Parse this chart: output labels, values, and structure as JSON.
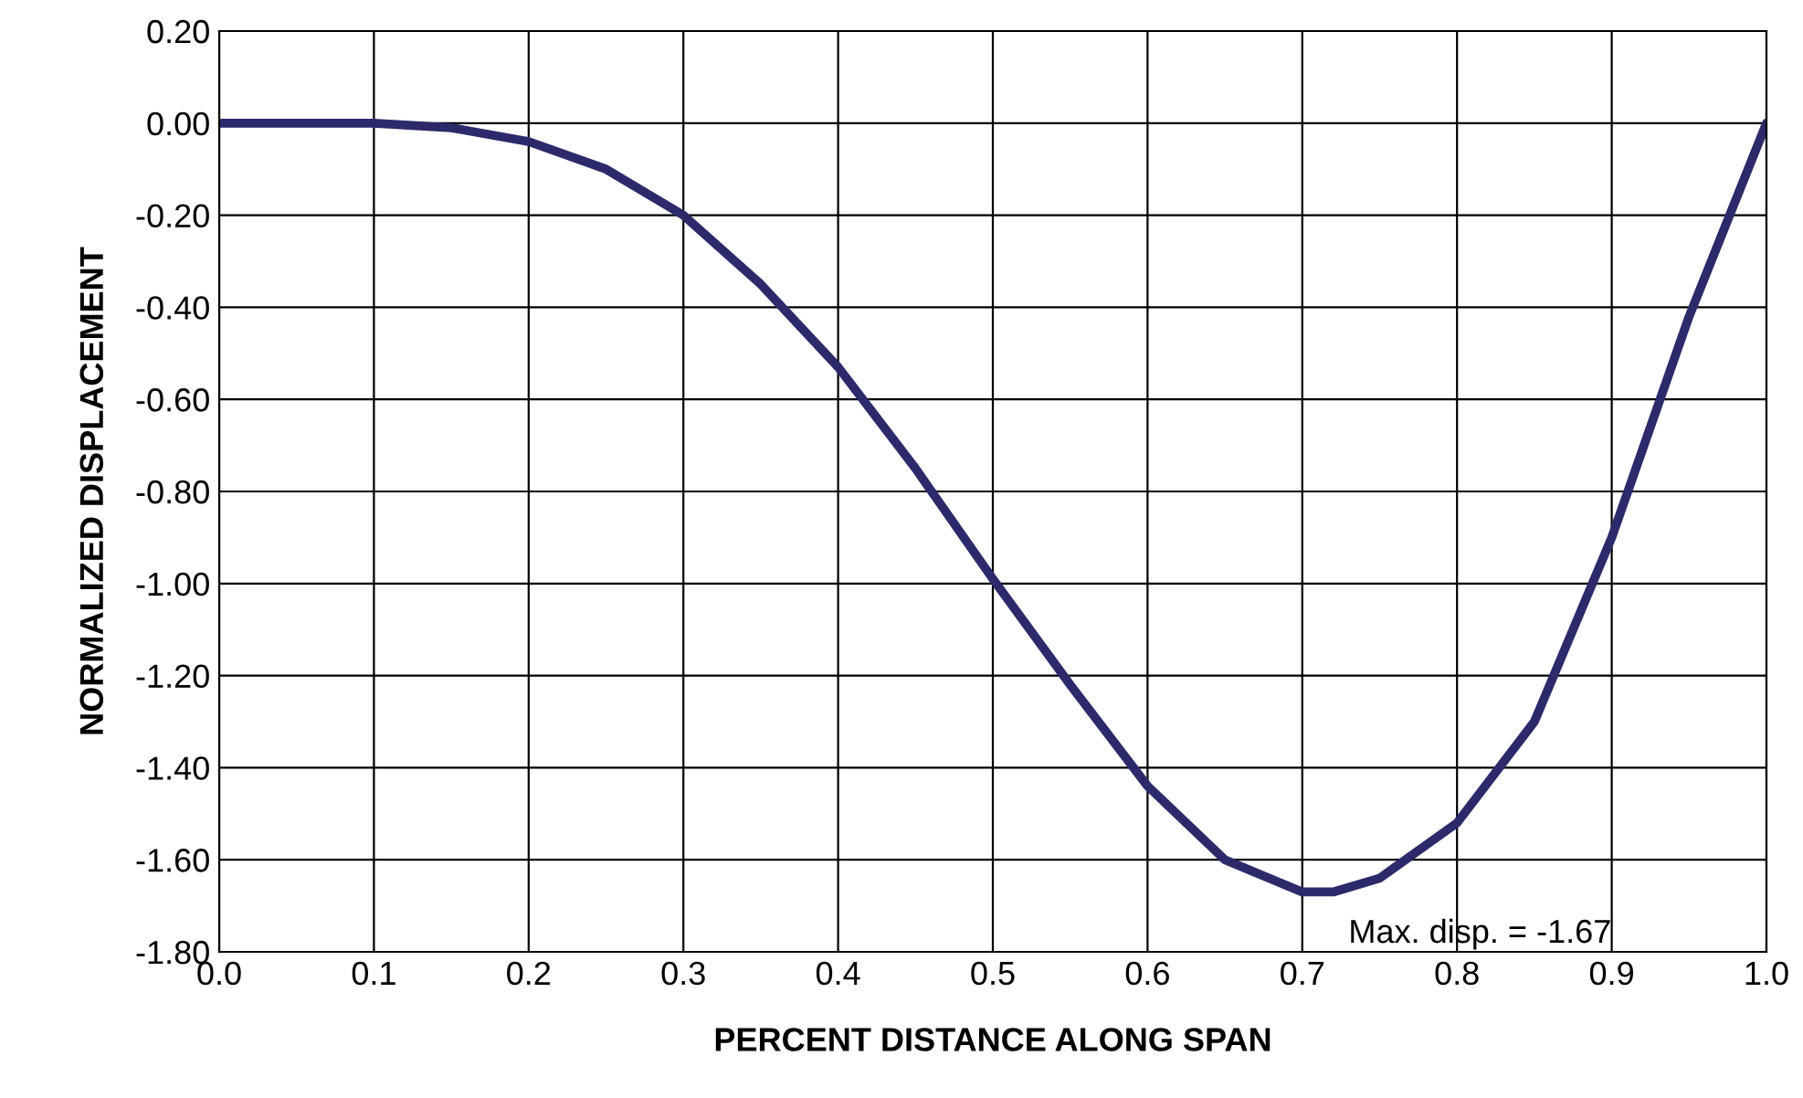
{
  "chart_data": {
    "type": "line",
    "xlabel": "PERCENT DISTANCE ALONG SPAN",
    "ylabel": "NORMALIZED DISPLACEMENT",
    "x": [
      0.0,
      0.05,
      0.1,
      0.15,
      0.2,
      0.25,
      0.3,
      0.35,
      0.4,
      0.45,
      0.5,
      0.55,
      0.6,
      0.65,
      0.7,
      0.72,
      0.75,
      0.8,
      0.85,
      0.9,
      0.95,
      1.0
    ],
    "series": [
      {
        "color": "#2d2a6b",
        "values": [
          0.0,
          0.0,
          0.0,
          -0.01,
          -0.04,
          -0.1,
          -0.2,
          -0.35,
          -0.53,
          -0.75,
          -0.99,
          -1.22,
          -1.44,
          -1.6,
          -1.67,
          -1.67,
          -1.64,
          -1.52,
          -1.3,
          -0.9,
          -0.42,
          0.0
        ]
      }
    ],
    "xlim": [
      0.0,
      1.0
    ],
    "xticks": [
      {
        "value": 0.0,
        "label": "0.0"
      },
      {
        "value": 0.1,
        "label": "0.1"
      },
      {
        "value": 0.2,
        "label": "0.2"
      },
      {
        "value": 0.3,
        "label": "0.3"
      },
      {
        "value": 0.4,
        "label": "0.4"
      },
      {
        "value": 0.5,
        "label": "0.5"
      },
      {
        "value": 0.6,
        "label": "0.6"
      },
      {
        "value": 0.7,
        "label": "0.7"
      },
      {
        "value": 0.8,
        "label": "0.8"
      },
      {
        "value": 0.9,
        "label": "0.9"
      },
      {
        "value": 1.0,
        "label": "1.0"
      }
    ],
    "ylim": [
      -1.8,
      0.2
    ],
    "yticks": [
      {
        "value": 0.2,
        "label": "0.20"
      },
      {
        "value": 0.0,
        "label": "0.00"
      },
      {
        "value": -0.2,
        "label": "-0.20"
      },
      {
        "value": -0.4,
        "label": "-0.40"
      },
      {
        "value": -0.6,
        "label": "-0.60"
      },
      {
        "value": -0.8,
        "label": "-0.80"
      },
      {
        "value": -1.0,
        "label": "-1.00"
      },
      {
        "value": -1.2,
        "label": "-1.20"
      },
      {
        "value": -1.4,
        "label": "-1.40"
      },
      {
        "value": -1.6,
        "label": "-1.60"
      },
      {
        "value": -1.8,
        "label": "-1.80"
      }
    ],
    "annotations": [
      {
        "text": "Max. disp. = -1.67",
        "x": 0.72,
        "y": -1.67
      }
    ],
    "grid": true,
    "marker": "none",
    "line_style": "solid",
    "legend": false
  }
}
